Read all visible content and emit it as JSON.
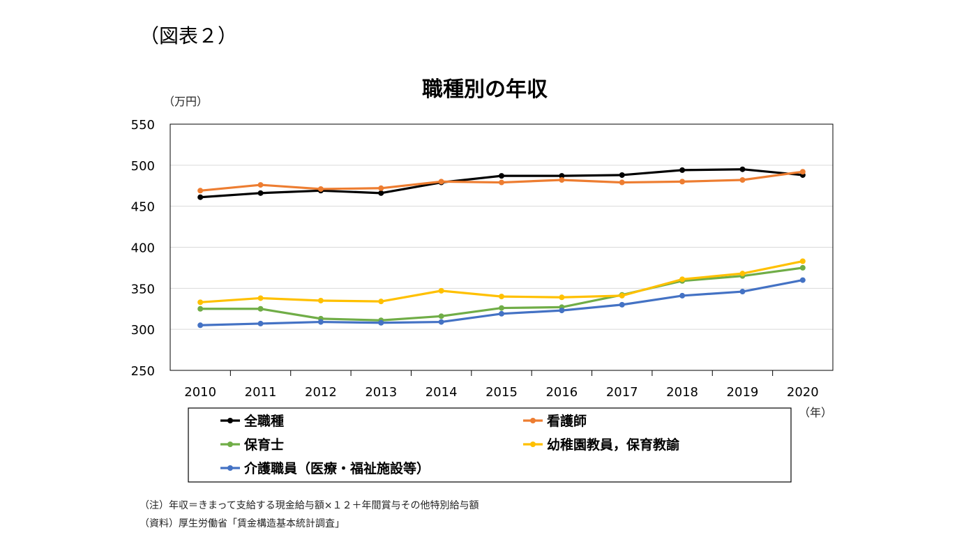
{
  "figure_label": "（図表２）",
  "chart_data": {
    "type": "line",
    "title": "職種別の年収",
    "ylabel": "（万円）",
    "xlabel": "（年）",
    "ylim": [
      250,
      550
    ],
    "yticks": [
      250,
      300,
      350,
      400,
      450,
      500,
      550
    ],
    "grid": true,
    "categories": [
      "2010",
      "2011",
      "2012",
      "2013",
      "2014",
      "2015",
      "2016",
      "2017",
      "2018",
      "2019",
      "2020"
    ],
    "series": [
      {
        "name": "全職種",
        "color": "#000000",
        "values": [
          461,
          466,
          469,
          466,
          479,
          487,
          487,
          488,
          494,
          495,
          488
        ]
      },
      {
        "name": "看護師",
        "color": "#ED7D31",
        "values": [
          469,
          476,
          471,
          472,
          480,
          479,
          482,
          479,
          480,
          482,
          492
        ]
      },
      {
        "name": "保育士",
        "color": "#70AD47",
        "values": [
          325,
          325,
          313,
          311,
          316,
          326,
          327,
          342,
          359,
          365,
          375
        ]
      },
      {
        "name": "幼稚園教員，保育教諭",
        "color": "#FFC000",
        "values": [
          333,
          338,
          335,
          334,
          347,
          340,
          339,
          341,
          361,
          368,
          383
        ]
      },
      {
        "name": "介護職員（医療・福祉施設等）",
        "color": "#4472C4",
        "values": [
          305,
          307,
          309,
          308,
          309,
          319,
          323,
          330,
          341,
          346,
          360
        ]
      }
    ],
    "legend_position": "bottom"
  },
  "notes": {
    "note": "（注）年収＝きまって支給する現金給与額×１２＋年間賞与その他特別給与額",
    "source": "（資料）厚生労働省「賃金構造基本統計調査」"
  }
}
